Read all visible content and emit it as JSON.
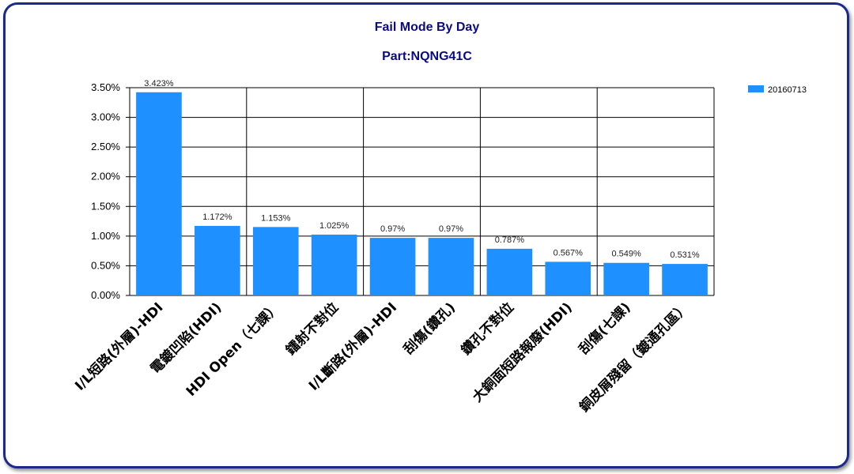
{
  "chart_data": {
    "type": "bar",
    "title": "Fail Mode By Day",
    "subtitle": "Part:NQNG41C",
    "categories": [
      "I/L短路(外層)-HDI",
      "電鍍凹陷(HDI)",
      "HDI Open（七課）",
      "鐳射不對位",
      "I/L斷路(外層)-HDI",
      "刮傷(鑽孔)",
      "鑽孔不對位",
      "大銅面短路報廢(HDI)",
      "刮傷(七課)",
      "銅皮屑殘留（鍍通孔區）"
    ],
    "series": [
      {
        "name": "20160713",
        "values": [
          3.423,
          1.172,
          1.153,
          1.025,
          0.97,
          0.97,
          0.787,
          0.567,
          0.549,
          0.531
        ],
        "labels": [
          "3.423%",
          "1.172%",
          "1.153%",
          "1.025%",
          "0.97%",
          "0.97%",
          "0.787%",
          "0.567%",
          "0.549%",
          "0.531%"
        ],
        "color": "#1e90ff"
      }
    ],
    "yticks": [
      "0.00%",
      "0.50%",
      "1.00%",
      "1.50%",
      "2.00%",
      "2.50%",
      "3.00%",
      "3.50%"
    ],
    "ylim": [
      0,
      3.5
    ],
    "grid": true,
    "legend_position": "right"
  }
}
